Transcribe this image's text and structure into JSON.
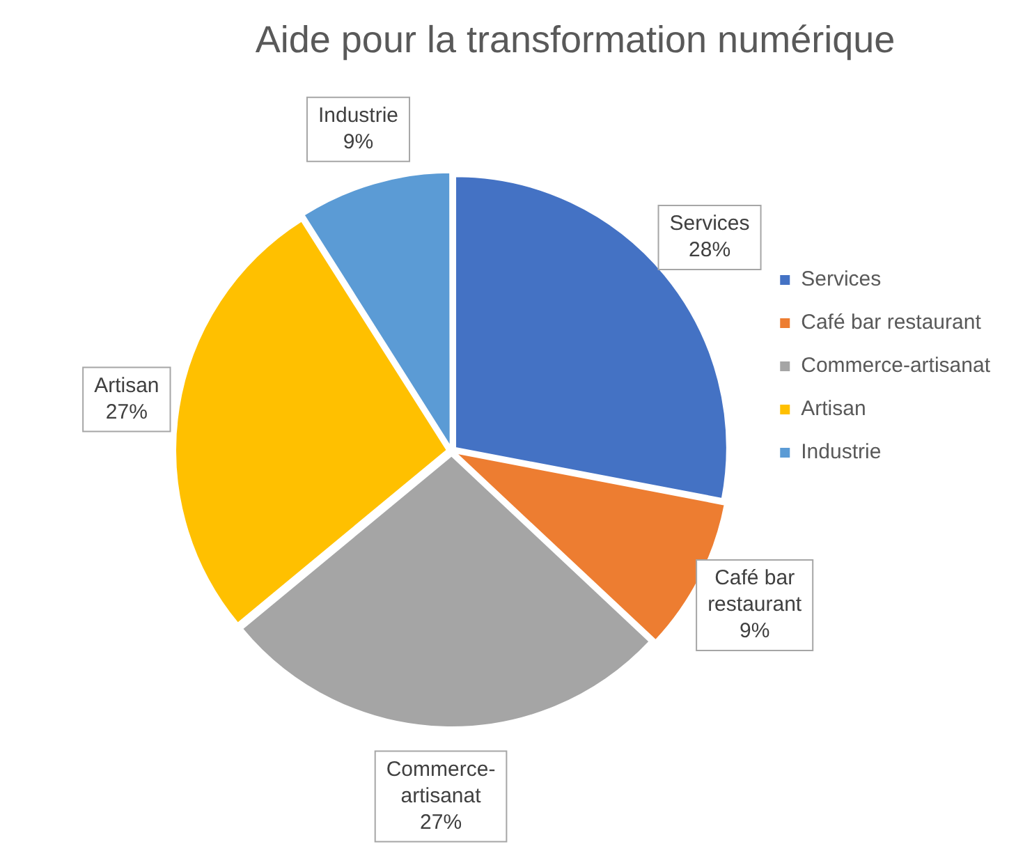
{
  "chart_data": {
    "type": "pie",
    "title": "Aide pour la transformation numérique",
    "categories": [
      "Services",
      "Café bar restaurant",
      "Commerce-artisanat",
      "Artisan",
      "Industrie"
    ],
    "values": [
      28,
      9,
      27,
      27,
      9
    ],
    "colors": [
      "#4472c4",
      "#ed7d31",
      "#a5a5a5",
      "#ffc000",
      "#5b9bd5"
    ],
    "value_labels": [
      "28%",
      "9%",
      "27%",
      "27%",
      "9%"
    ],
    "legend": "right"
  }
}
